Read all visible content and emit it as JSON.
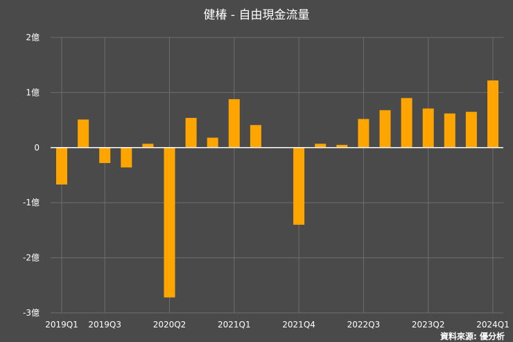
{
  "chart_data": {
    "type": "bar",
    "title": "健椿 - 自由現金流量",
    "source": "資料來源: 優分析",
    "xlabel": "",
    "ylabel": "",
    "ylim": [
      -3,
      2
    ],
    "grid": true,
    "bar_color": "#ffa500",
    "background_color": "#4a4a4a",
    "y_ticks": [
      {
        "value": 2,
        "label": "2億"
      },
      {
        "value": 1,
        "label": "1億"
      },
      {
        "value": 0,
        "label": "0"
      },
      {
        "value": -1,
        "label": "-1億"
      },
      {
        "value": -2,
        "label": "-2億"
      },
      {
        "value": -3,
        "label": "-3億"
      }
    ],
    "categories": [
      "2019Q1",
      "2019Q2",
      "2019Q3",
      "2019Q4",
      "2020Q1",
      "2020Q2",
      "2020Q3",
      "2020Q4",
      "2021Q1",
      "2021Q2",
      "2021Q3",
      "2021Q4",
      "2022Q1",
      "2022Q2",
      "2022Q3",
      "2022Q4",
      "2023Q1",
      "2023Q2",
      "2023Q3",
      "2023Q4",
      "2024Q1"
    ],
    "values": [
      -0.67,
      0.51,
      -0.28,
      -0.36,
      0.07,
      -2.72,
      0.54,
      0.18,
      0.88,
      0.41,
      null,
      -1.4,
      0.07,
      0.05,
      0.52,
      0.68,
      0.9,
      0.71,
      0.62,
      0.65,
      1.22
    ],
    "x_tick_labels": [
      "2019Q1",
      "2019Q3",
      "2020Q2",
      "2021Q1",
      "2021Q4",
      "2022Q3",
      "2023Q2",
      "2024Q1"
    ]
  }
}
